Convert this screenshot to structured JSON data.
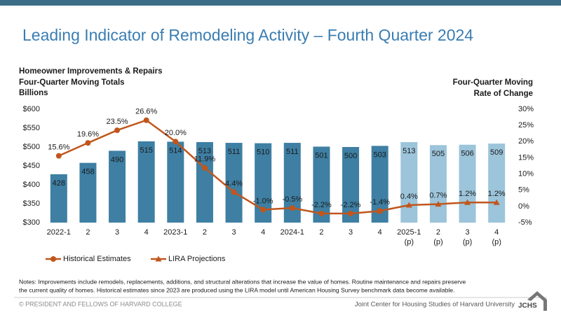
{
  "chart_data": {
    "type": "bar_line",
    "title": "Leading Indicator of Remodeling Activity – Fourth Quarter 2024",
    "y_title": [
      "Homeowner Improvements & Repairs",
      "Four-Quarter Moving Totals",
      "Billions"
    ],
    "y2_title": [
      "Four-Quarter Moving",
      "Rate of Change"
    ],
    "categories": [
      "2022-1",
      "2",
      "3",
      "4",
      "2023-1",
      "2",
      "3",
      "4",
      "2024-1",
      "2",
      "3",
      "4",
      "2025-1",
      "2",
      "3",
      "4"
    ],
    "category_notes": [
      null,
      null,
      null,
      null,
      null,
      null,
      null,
      null,
      null,
      null,
      null,
      null,
      "(p)",
      "(p)",
      "(p)",
      "(p)"
    ],
    "bars": {
      "values": [
        428,
        458,
        490,
        515,
        514,
        513,
        511,
        510,
        511,
        501,
        500,
        503,
        513,
        505,
        506,
        509
      ],
      "colors": [
        "#3e7fa3",
        "#3e7fa3",
        "#3e7fa3",
        "#3e7fa3",
        "#3e7fa3",
        "#3e7fa3",
        "#3e7fa3",
        "#3e7fa3",
        "#3e7fa3",
        "#3e7fa3",
        "#3e7fa3",
        "#3e7fa3",
        "#9cc4da",
        "#9cc4da",
        "#9cc4da",
        "#9cc4da"
      ]
    },
    "series": [
      {
        "name": "Historical Estimates",
        "color": "#c0561c",
        "marker": "circle",
        "axis": "y2",
        "values": [
          15.6,
          19.6,
          23.5,
          26.6,
          20.0,
          11.9,
          4.4,
          -1.0,
          -0.5,
          -2.2,
          -2.2,
          -1.4,
          null,
          null,
          null,
          null
        ],
        "value_labels": [
          "15.6%",
          "19.6%",
          "23.5%",
          "26.6%",
          "20.0%",
          "11.9%",
          "4.4%",
          "-1.0%",
          "-0.5%",
          "-2.2%",
          "-2.2%",
          "-1.4%",
          null,
          null,
          null,
          null
        ]
      },
      {
        "name": "LIRA Projections",
        "color": "#c0561c",
        "marker": "triangle",
        "axis": "y2",
        "values": [
          null,
          null,
          null,
          null,
          null,
          null,
          null,
          null,
          null,
          null,
          null,
          -1.4,
          0.4,
          0.7,
          1.2,
          1.2
        ],
        "value_labels": [
          null,
          null,
          null,
          null,
          null,
          null,
          null,
          null,
          null,
          null,
          null,
          null,
          "0.4%",
          "0.7%",
          "1.2%",
          "1.2%"
        ]
      }
    ],
    "ylim": [
      300,
      600
    ],
    "yticks": [
      {
        "value": 300,
        "label": "$300"
      },
      {
        "value": 350,
        "label": "$350"
      },
      {
        "value": 400,
        "label": "$400"
      },
      {
        "value": 450,
        "label": "$450"
      },
      {
        "value": 500,
        "label": "$500"
      },
      {
        "value": 550,
        "label": "$550"
      },
      {
        "value": 600,
        "label": "$600"
      }
    ],
    "y2lim": [
      -5,
      30
    ],
    "y2ticks": [
      {
        "value": -5,
        "label": "-5%"
      },
      {
        "value": 0,
        "label": "0%"
      },
      {
        "value": 5,
        "label": "5%"
      },
      {
        "value": 10,
        "label": "10%"
      },
      {
        "value": 15,
        "label": "15%"
      },
      {
        "value": 20,
        "label": "20%"
      },
      {
        "value": 25,
        "label": "25%"
      },
      {
        "value": 30,
        "label": "30%"
      }
    ],
    "grid": false,
    "legend": "bottom-left"
  },
  "notes": [
    "Notes: Improvements include remodels, replacements, additions, and structural alterations that increase the value of homes. Routine maintenance and repairs preserve",
    "the current quality of homes. Historical estimates since 2023 are produced using the LIRA model until American Housing Survey benchmark data become available."
  ],
  "footer": {
    "left": "© PRESIDENT AND FELLOWS OF HARVARD COLLEGE",
    "right": "Joint Center for Housing Studies of Harvard University",
    "logo": "JCHS"
  }
}
